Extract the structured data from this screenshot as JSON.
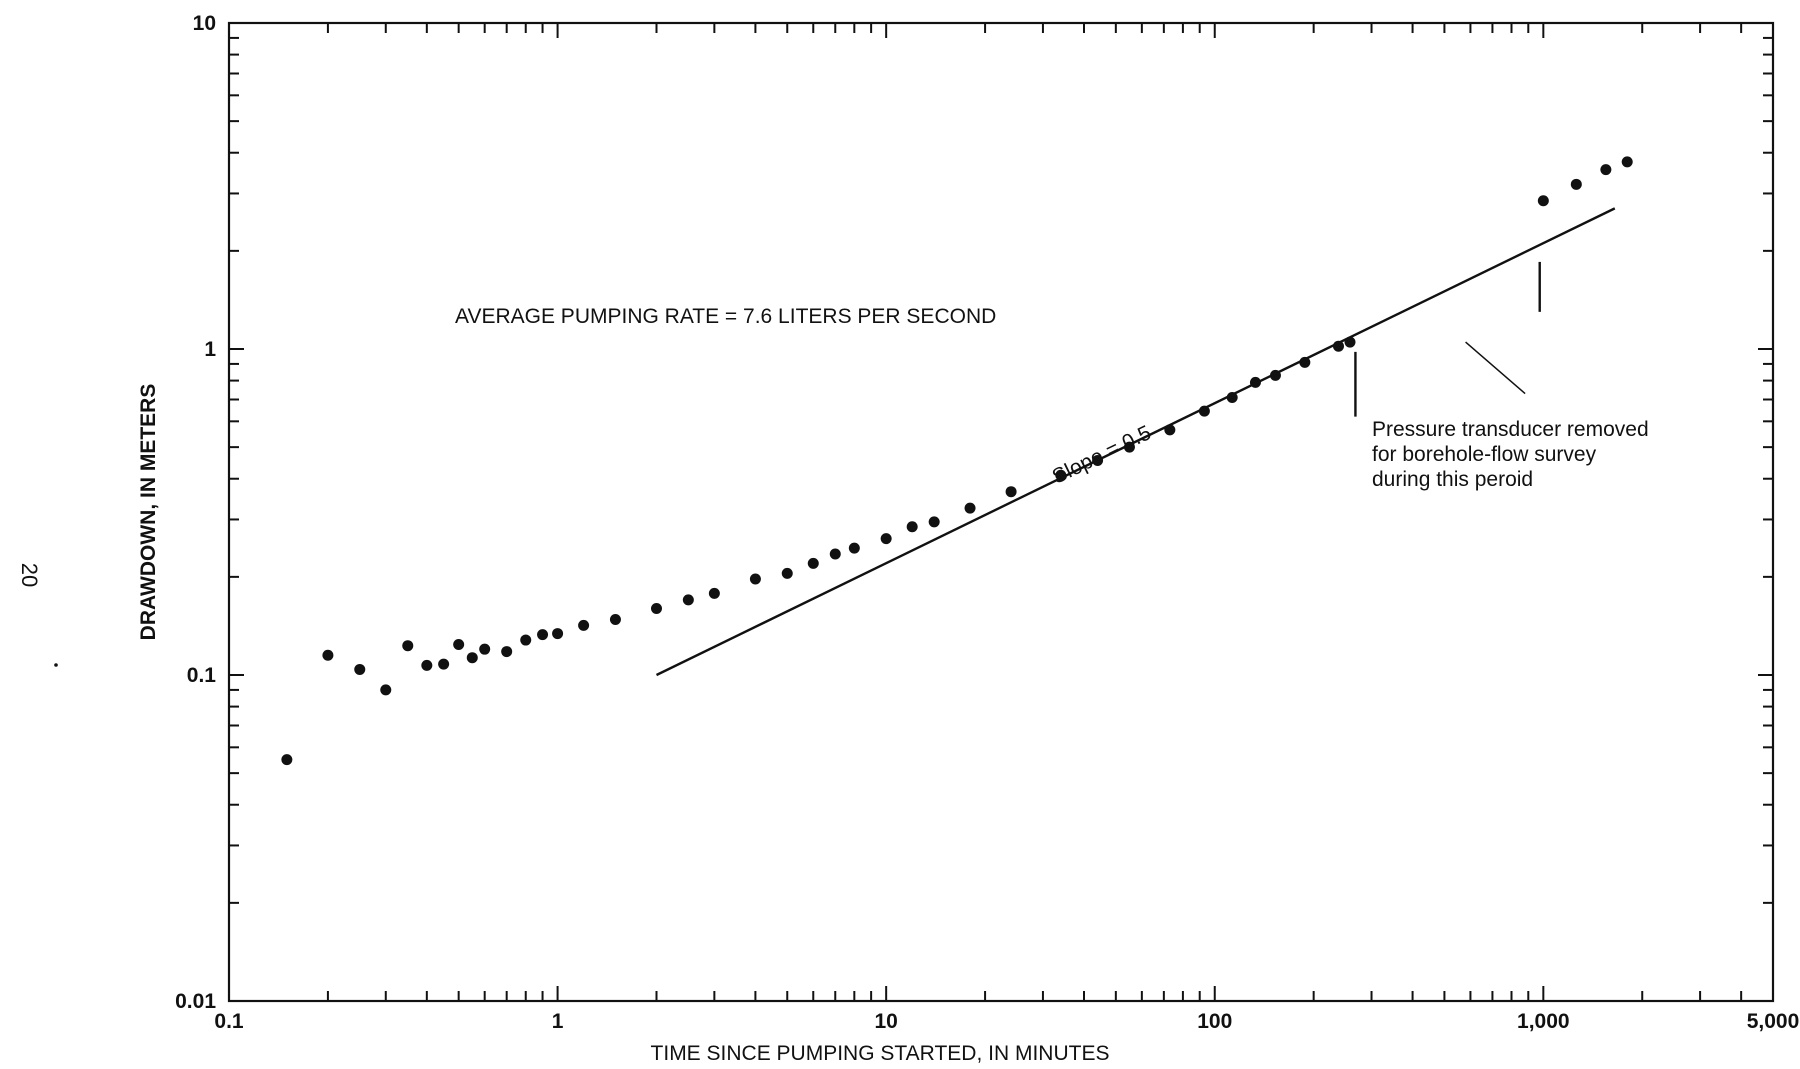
{
  "page_number": "20",
  "chart_data": {
    "type": "scatter",
    "xscale": "log",
    "yscale": "log",
    "xlim": [
      0.1,
      5000
    ],
    "ylim": [
      0.01,
      10
    ],
    "xlabel": "TIME SINCE PUMPING STARTED, IN MINUTES",
    "ylabel": "DRAWDOWN, IN METERS",
    "x_tick_labels": [
      {
        "value": 0.1,
        "label": "0.1"
      },
      {
        "value": 1,
        "label": "1"
      },
      {
        "value": 10,
        "label": "10"
      },
      {
        "value": 100,
        "label": "100"
      },
      {
        "value": 1000,
        "label": "1,000"
      },
      {
        "value": 5000,
        "label": "5,000"
      }
    ],
    "y_tick_labels": [
      {
        "value": 0.01,
        "label": "0.01"
      },
      {
        "value": 0.1,
        "label": "0.1"
      },
      {
        "value": 1,
        "label": "1"
      },
      {
        "value": 10,
        "label": "10"
      }
    ],
    "points": [
      [
        0.15,
        0.055
      ],
      [
        0.2,
        0.115
      ],
      [
        0.25,
        0.104
      ],
      [
        0.3,
        0.09
      ],
      [
        0.35,
        0.123
      ],
      [
        0.4,
        0.107
      ],
      [
        0.45,
        0.108
      ],
      [
        0.5,
        0.124
      ],
      [
        0.55,
        0.113
      ],
      [
        0.6,
        0.12
      ],
      [
        0.7,
        0.118
      ],
      [
        0.8,
        0.128
      ],
      [
        0.9,
        0.133
      ],
      [
        1.0,
        0.134
      ],
      [
        1.2,
        0.142
      ],
      [
        1.5,
        0.148
      ],
      [
        2.0,
        0.16
      ],
      [
        2.5,
        0.17
      ],
      [
        3.0,
        0.178
      ],
      [
        4.0,
        0.197
      ],
      [
        5.0,
        0.205
      ],
      [
        6.0,
        0.22
      ],
      [
        7.0,
        0.235
      ],
      [
        8.0,
        0.245
      ],
      [
        10.0,
        0.262
      ],
      [
        12.0,
        0.285
      ],
      [
        14.0,
        0.295
      ],
      [
        18.0,
        0.325
      ],
      [
        24.0,
        0.365
      ],
      [
        34.0,
        0.41
      ],
      [
        44.0,
        0.455
      ],
      [
        55.0,
        0.5
      ],
      [
        73.0,
        0.565
      ],
      [
        93.0,
        0.645
      ],
      [
        113.0,
        0.71
      ],
      [
        133.0,
        0.79
      ],
      [
        153.0,
        0.83
      ],
      [
        188.0,
        0.91
      ],
      [
        238.0,
        1.02
      ],
      [
        258.0,
        1.05
      ],
      [
        1000.0,
        2.85
      ],
      [
        1260.0,
        3.2
      ],
      [
        1550.0,
        3.55
      ],
      [
        1800.0,
        3.75
      ]
    ],
    "fit_line": {
      "from": [
        2.0,
        0.1
      ],
      "to": [
        1650.0,
        2.7
      ],
      "label": "Slope = 0.5"
    },
    "annotations": {
      "pumping_rate": "AVERAGE PUMPING RATE = 7.6 LITERS PER SECOND",
      "transducer_note": [
        "Pressure transducer removed",
        "for borehole-flow survey",
        "during this peroid"
      ]
    },
    "gap_markers": [
      {
        "x": 268,
        "y_from": 0.62,
        "y_to": 0.98
      },
      {
        "x": 975,
        "y_from": 1.3,
        "y_to": 1.85
      }
    ],
    "leader_line": {
      "from": [
        580,
        1.05
      ],
      "to": [
        880,
        0.73
      ]
    }
  }
}
